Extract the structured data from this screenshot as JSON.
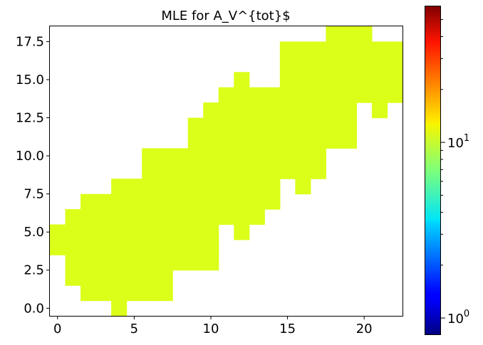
{
  "chart_data": {
    "type": "heatmap",
    "title": "MLE for A_V^{tot}$",
    "xlabel": "",
    "ylabel": "",
    "xlim": [
      -0.5,
      22.5
    ],
    "ylim": [
      -0.5,
      18.5
    ],
    "x_ticks": [
      0,
      5,
      10,
      15,
      20
    ],
    "x_tick_labels": [
      "0",
      "5",
      "10",
      "15",
      "20"
    ],
    "y_ticks": [
      0.0,
      2.5,
      5.0,
      7.5,
      10.0,
      12.5,
      15.0,
      17.5
    ],
    "y_tick_labels": [
      "0.0",
      "2.5",
      "5.0",
      "7.5",
      "10.0",
      "12.5",
      "15.0",
      "17.5"
    ],
    "cell_value": 10,
    "cell_color": "#dcff1a",
    "colormap": "jet",
    "colorbar": {
      "scale": "log",
      "range": [
        0.8,
        60
      ],
      "major_ticks": [
        1,
        10
      ],
      "major_tick_labels": [
        "10",
        "10"
      ],
      "major_tick_exponents": [
        "0",
        "1"
      ],
      "minor_ticks": [
        2,
        3,
        4,
        5,
        6,
        7,
        8,
        9,
        20,
        30,
        40,
        50
      ]
    },
    "cells_by_row": [
      {
        "y": 0,
        "x": [
          4
        ]
      },
      {
        "y": 1,
        "x": [
          2,
          3,
          4,
          5,
          6,
          7
        ]
      },
      {
        "y": 2,
        "x": [
          1,
          2,
          3,
          4,
          5,
          6,
          7
        ]
      },
      {
        "y": 3,
        "x": [
          1,
          2,
          3,
          4,
          5,
          6,
          7,
          8,
          9,
          10
        ]
      },
      {
        "y": 4,
        "x": [
          0,
          1,
          2,
          3,
          4,
          5,
          6,
          7,
          8,
          9,
          10
        ]
      },
      {
        "y": 5,
        "x": [
          0,
          1,
          2,
          3,
          4,
          5,
          6,
          7,
          8,
          9,
          10,
          12
        ]
      },
      {
        "y": 6,
        "x": [
          1,
          2,
          3,
          4,
          5,
          6,
          7,
          8,
          9,
          10,
          11,
          12,
          13
        ]
      },
      {
        "y": 7,
        "x": [
          2,
          3,
          4,
          5,
          6,
          7,
          8,
          9,
          10,
          11,
          12,
          13,
          14
        ]
      },
      {
        "y": 8,
        "x": [
          4,
          5,
          6,
          7,
          8,
          9,
          10,
          11,
          12,
          13,
          14,
          16
        ]
      },
      {
        "y": 9,
        "x": [
          6,
          7,
          8,
          9,
          10,
          11,
          12,
          13,
          14,
          15,
          16,
          17
        ]
      },
      {
        "y": 10,
        "x": [
          6,
          7,
          8,
          9,
          10,
          11,
          12,
          13,
          14,
          15,
          16,
          17
        ]
      },
      {
        "y": 11,
        "x": [
          9,
          10,
          11,
          12,
          13,
          14,
          15,
          16,
          17,
          18,
          19
        ]
      },
      {
        "y": 12,
        "x": [
          9,
          10,
          11,
          12,
          13,
          14,
          15,
          16,
          17,
          18,
          19
        ]
      },
      {
        "y": 13,
        "x": [
          10,
          11,
          12,
          13,
          14,
          15,
          16,
          17,
          18,
          19,
          21
        ]
      },
      {
        "y": 14,
        "x": [
          11,
          12,
          13,
          14,
          15,
          16,
          17,
          18,
          19,
          20,
          21,
          22
        ]
      },
      {
        "y": 15,
        "x": [
          12,
          15,
          16,
          17,
          18,
          19,
          20,
          21,
          22
        ]
      },
      {
        "y": 16,
        "x": [
          15,
          16,
          17,
          18,
          19,
          20,
          21,
          22
        ]
      },
      {
        "y": 17,
        "x": [
          15,
          16,
          17,
          18,
          19,
          20,
          21,
          22
        ]
      },
      {
        "y": 18,
        "x": [
          18,
          19,
          20
        ]
      }
    ]
  }
}
